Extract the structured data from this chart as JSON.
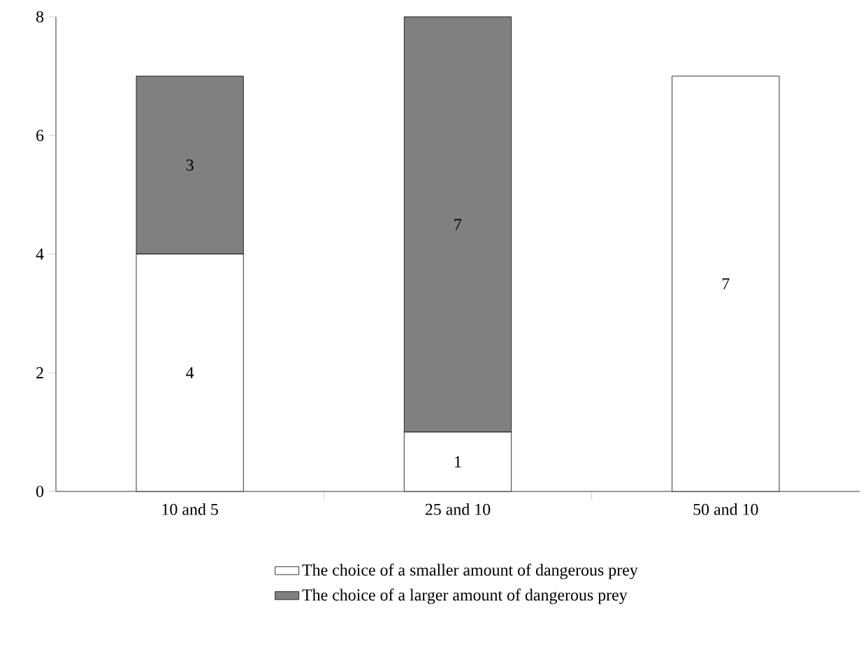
{
  "chart_data": {
    "type": "bar",
    "stacked": true,
    "categories": [
      "10 and 5",
      "25 and 10",
      "50 and 10"
    ],
    "series": [
      {
        "name": "The choice of a smaller amount of dangerous prey",
        "color": "#ffffff",
        "values": [
          4,
          1,
          7
        ],
        "value_labels": [
          "4",
          "1",
          "7"
        ]
      },
      {
        "name": "The choice of a larger amount of dangerous prey",
        "color": "#808080",
        "values": [
          3,
          7,
          0
        ],
        "value_labels": [
          "3",
          "7",
          null
        ]
      }
    ],
    "ylim": [
      0,
      8
    ],
    "yticks": [
      0,
      2,
      4,
      6,
      8
    ],
    "grid": false,
    "legend": "bottom"
  }
}
